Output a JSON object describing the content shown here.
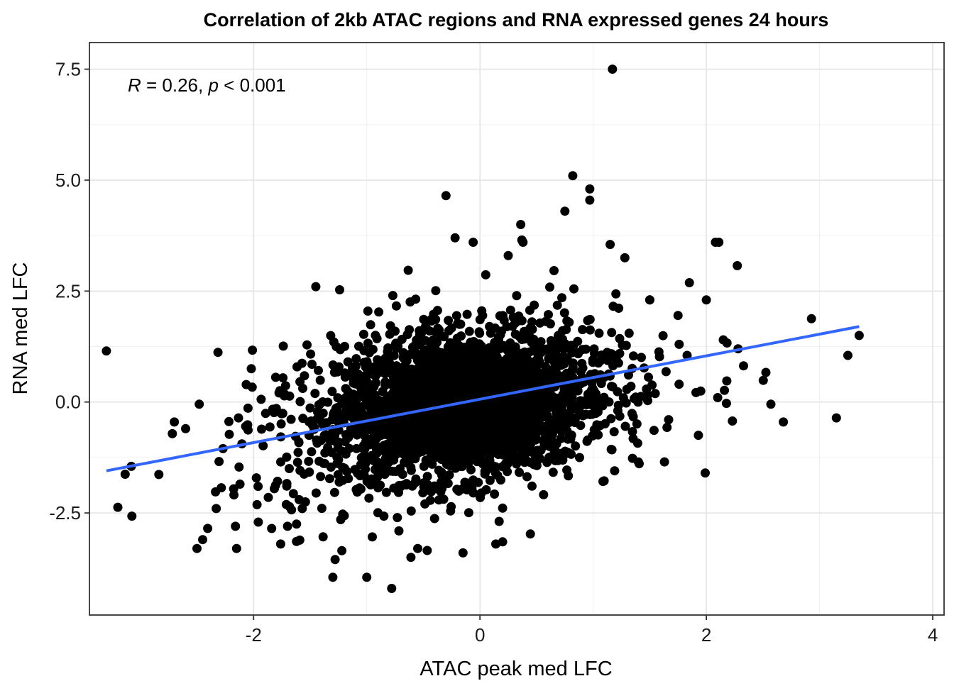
{
  "chart_data": {
    "type": "scatter",
    "title": "Correlation of 2kb ATAC regions and RNA expressed genes 24 hours",
    "xlabel": "ATAC peak med LFC",
    "ylabel": "RNA med LFC",
    "xlim": [
      -3.45,
      4.1
    ],
    "ylim": [
      -4.8,
      8.1
    ],
    "xticks": [
      -2,
      0,
      2,
      4
    ],
    "xtick_labels": [
      "-2",
      "0",
      "2",
      "4"
    ],
    "yticks": [
      -2.5,
      0.0,
      2.5,
      5.0,
      7.5
    ],
    "ytick_labels": [
      "-2.5",
      "0.0",
      "2.5",
      "5.0",
      "7.5"
    ],
    "grid": true,
    "annotation": {
      "r_symbol": "R",
      "r_text": " = 0.26, ",
      "p_symbol": "p",
      "p_text": " < 0.001"
    },
    "point_color": "#000000",
    "fit_line": {
      "color": "#3366ff",
      "x": [
        -3.3,
        3.35
      ],
      "y": [
        -1.55,
        1.7
      ]
    },
    "outliers": {
      "x": [
        1.17,
        0.82,
        0.97,
        0.97,
        -0.3,
        -0.22,
        0.36,
        0.37,
        0.38,
        0.25,
        0.75,
        2.08,
        2.11,
        1.15,
        -0.06,
        1.28,
        0.83,
        -1.45,
        -0.99,
        -0.77,
        1.5,
        1.5,
        2.0,
        1.75,
        3.35,
        2.15,
        3.25,
        1.99,
        2.1,
        2.57,
        2.68,
        1.93,
        -3.3,
        -3.08,
        -2.5,
        -2.45,
        -2.48,
        -2.33,
        -2.16,
        -2.15,
        -2.27,
        -2.12,
        -1.96,
        -1.7,
        -1.62,
        -1.57,
        -1.84,
        -1.87,
        -1.22,
        -1.28,
        -1.3,
        -1.0,
        -0.78,
        -2.02,
        -2.6,
        -2.7,
        -2.07,
        -0.55,
        0.2,
        0.14,
        -1.23,
        1.83,
        1.76,
        1.19,
        1.4,
        -0.61,
        -0.15
      ],
      "y": [
        7.5,
        5.1,
        4.8,
        4.55,
        4.65,
        3.7,
        4.0,
        3.65,
        3.6,
        3.3,
        4.3,
        3.6,
        3.6,
        3.55,
        3.6,
        3.25,
        2.55,
        2.6,
        2.05,
        2.4,
        2.3,
        2.3,
        2.3,
        1.95,
        1.5,
        1.4,
        1.05,
        -1.6,
        0.1,
        -0.05,
        -0.45,
        -0.75,
        1.15,
        -1.45,
        -3.3,
        -3.1,
        -0.05,
        -2.4,
        -2.8,
        -3.3,
        -1.05,
        -1.85,
        -1.9,
        -2.8,
        -2.75,
        -2.4,
        -2.85,
        -2.15,
        -3.35,
        -3.55,
        -3.95,
        -3.95,
        -4.2,
        0.75,
        -0.6,
        -0.45,
        -0.55,
        -3.3,
        -3.15,
        -3.2,
        -2.65,
        1.05,
        1.3,
        -1.55,
        -1.35,
        -3.5,
        -3.4
      ]
    }
  }
}
